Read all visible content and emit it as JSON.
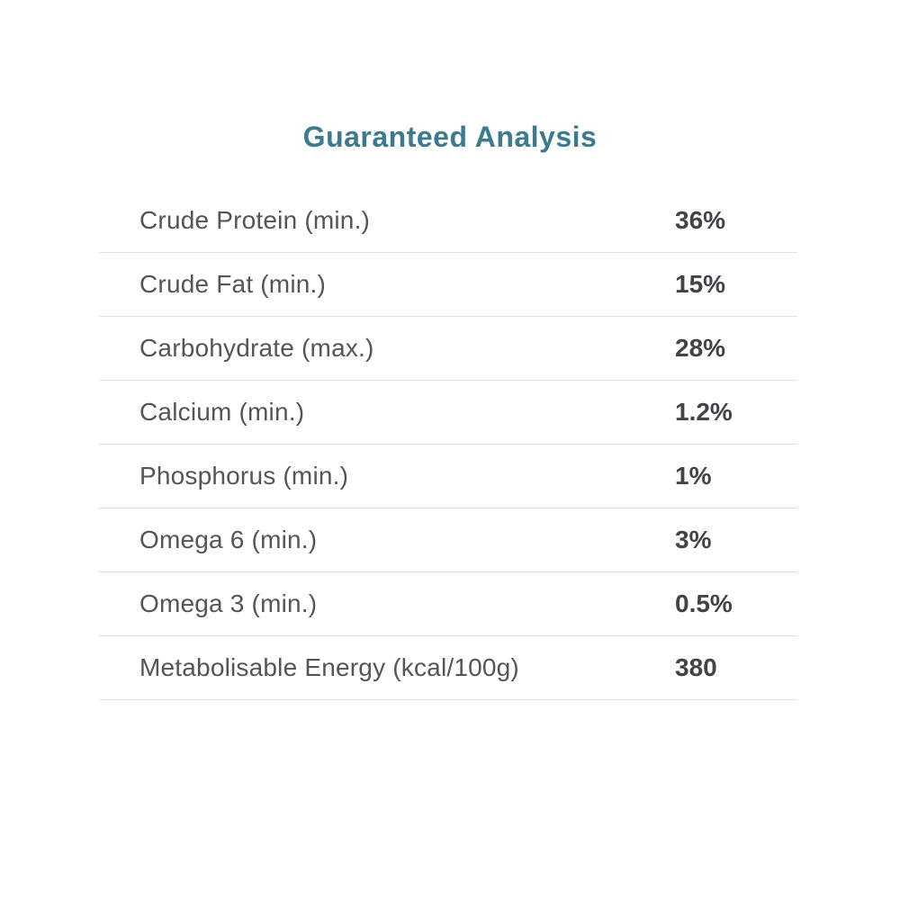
{
  "title": "Guaranteed Analysis",
  "colors": {
    "title": "#3d7a8e",
    "label": "#53555a",
    "value": "#404449",
    "divider": "#e1e1e3",
    "background": "#ffffff"
  },
  "table": {
    "rows": [
      {
        "label": "Crude Protein (min.)",
        "value": "36%"
      },
      {
        "label": "Crude Fat (min.)",
        "value": "15%"
      },
      {
        "label": "Carbohydrate (max.)",
        "value": "28%"
      },
      {
        "label": "Calcium (min.)",
        "value": "1.2%"
      },
      {
        "label": "Phosphorus (min.)",
        "value": "1%"
      },
      {
        "label": "Omega 6 (min.)",
        "value": "3%"
      },
      {
        "label": "Omega 3 (min.)",
        "value": "0.5%"
      },
      {
        "label": "Metabolisable Energy (kcal/100g)",
        "value": "380"
      }
    ]
  }
}
